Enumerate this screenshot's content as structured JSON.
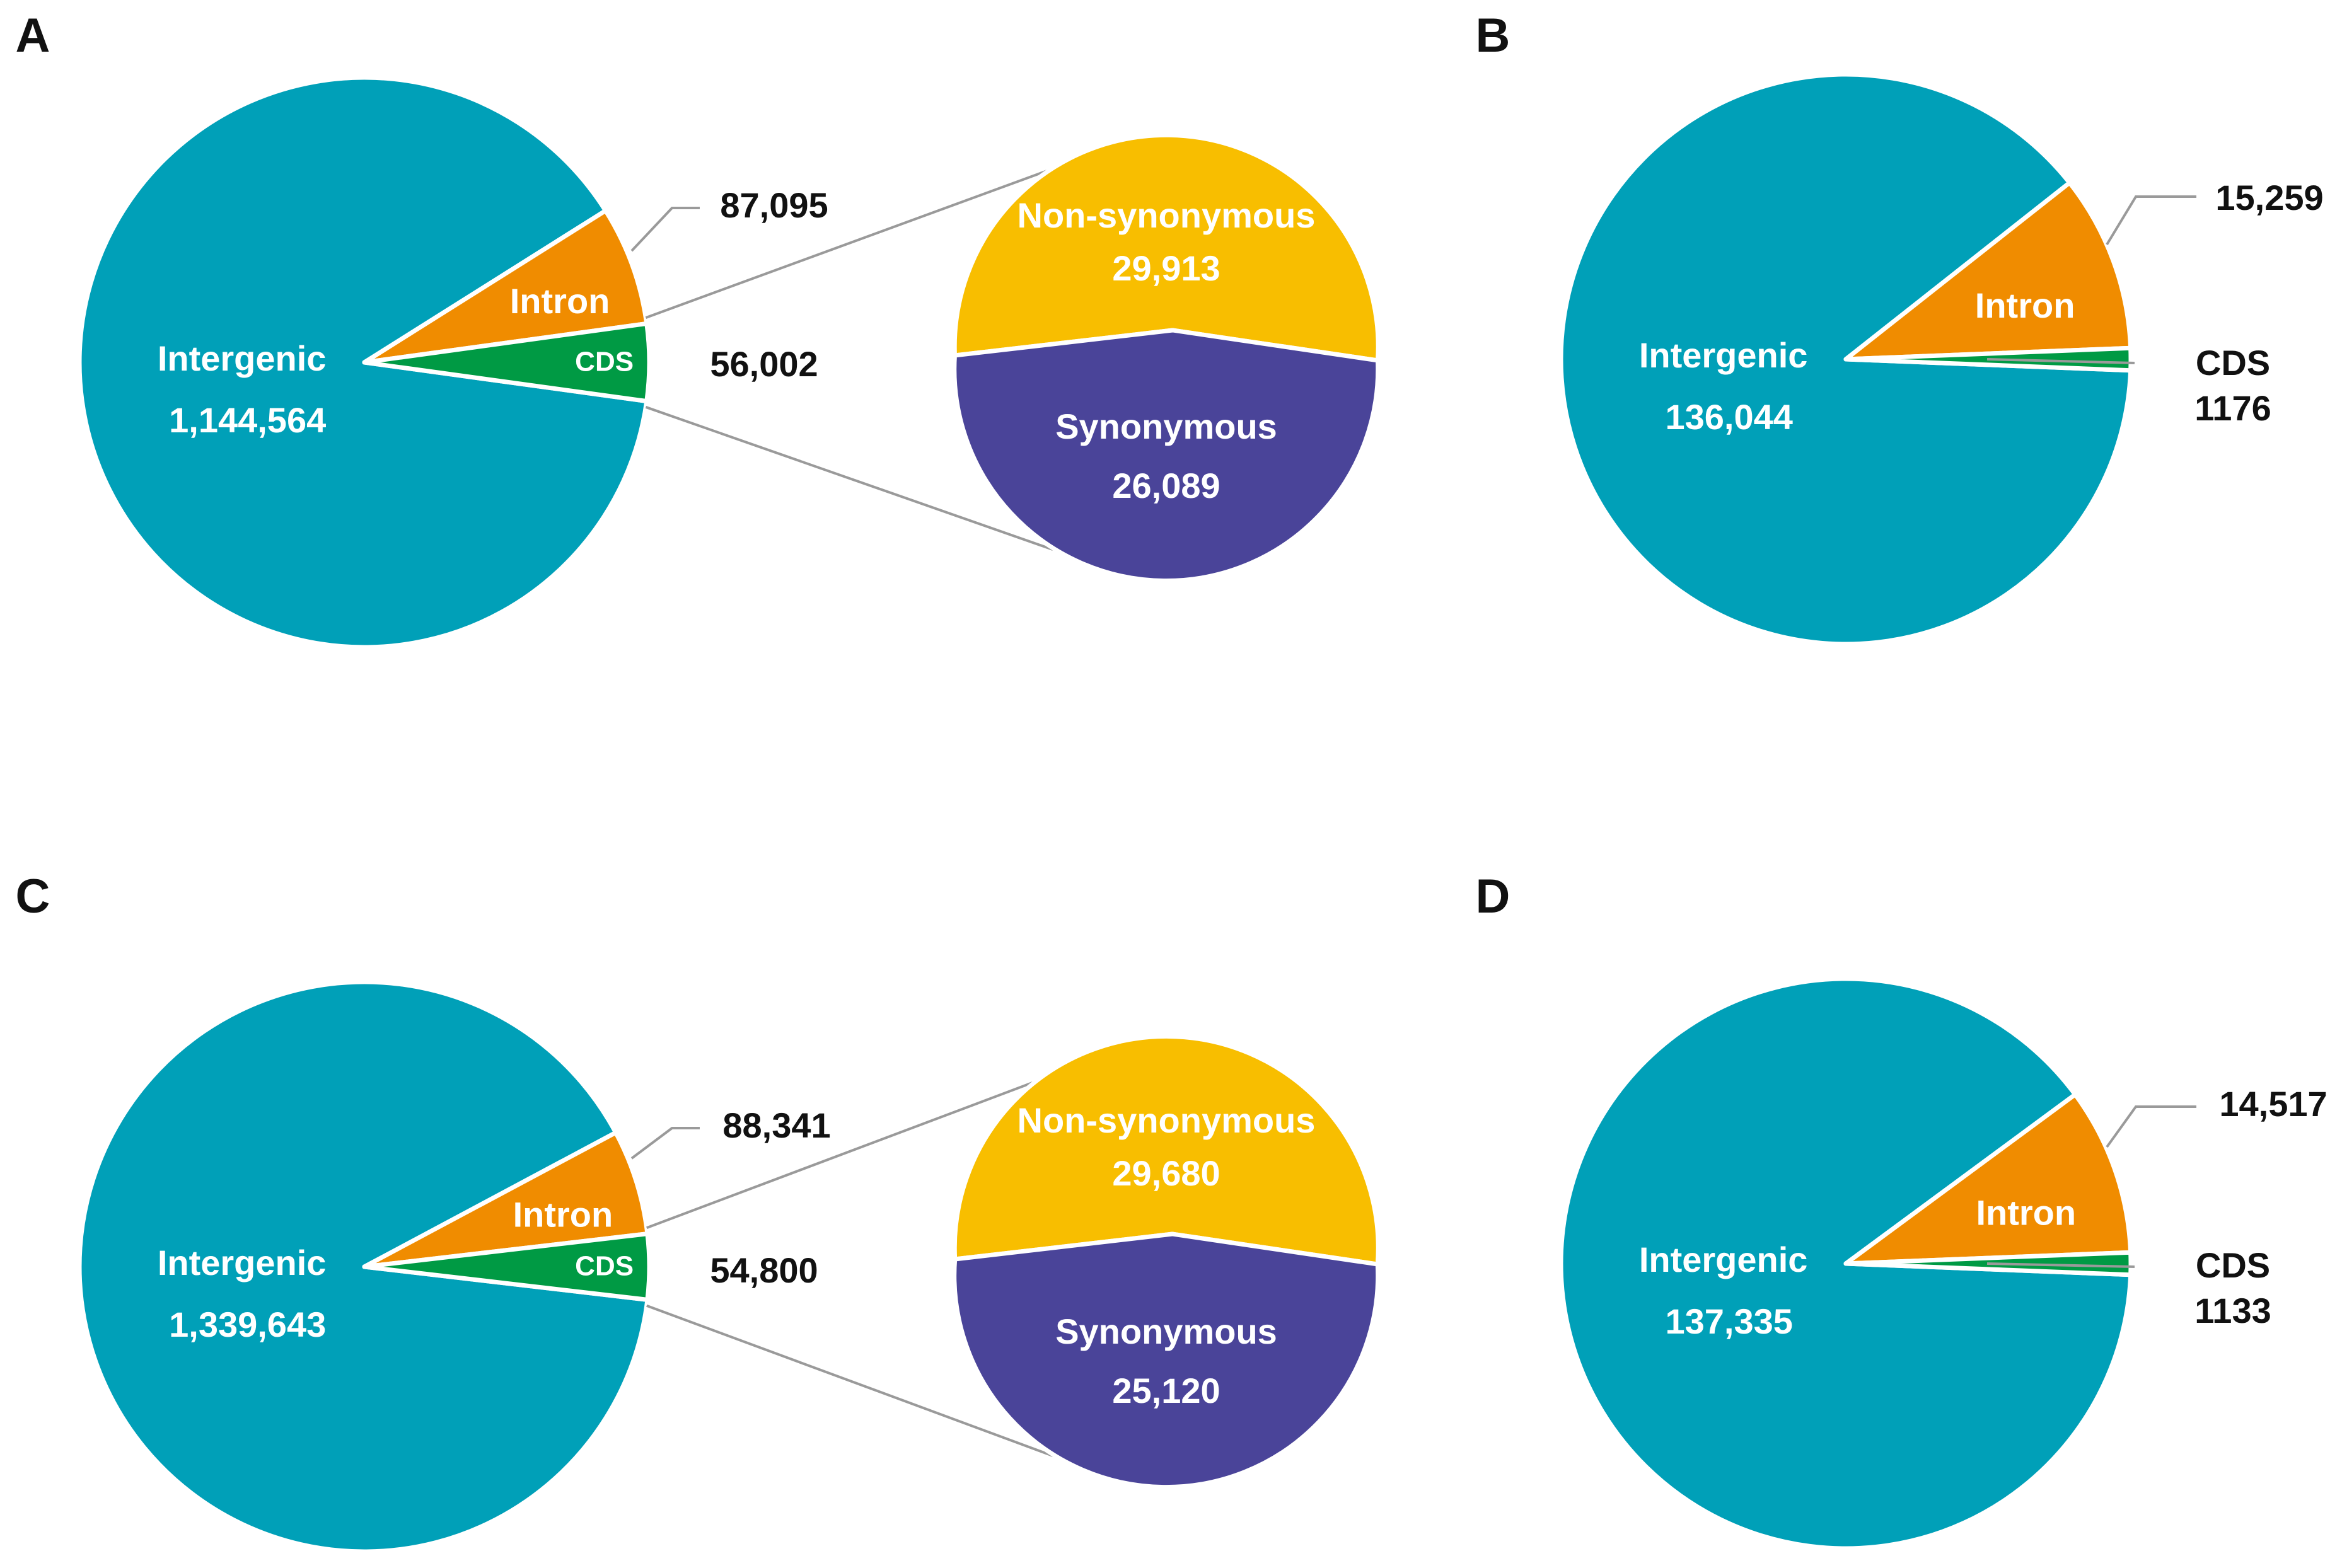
{
  "figure": {
    "colors": {
      "intergenic": "#00A0B8",
      "intron": "#F08C00",
      "cds": "#009A44",
      "nonsynonymous": "#F8BE00",
      "synonymous": "#4A4499",
      "leader": "#9A9A9A",
      "text_dark": "#111111",
      "text_light": "#FFFFFF"
    }
  },
  "chart_data": [
    {
      "panel": "A",
      "type": "pie",
      "slices": [
        {
          "key": "intergenic",
          "label": "Intergenic",
          "value": 1144564,
          "value_label": "1,144,564"
        },
        {
          "key": "intron",
          "label": "Intron",
          "value": 87095,
          "value_label": "87,095"
        },
        {
          "key": "cds",
          "label": "CDS",
          "value": 56002,
          "value_label": "56,002"
        }
      ],
      "breakdown": {
        "of": "CDS",
        "slices": [
          {
            "key": "nonsynonymous",
            "label": "Non-synonymous",
            "value": 29913,
            "value_label": "29,913"
          },
          {
            "key": "synonymous",
            "label": "Synonymous",
            "value": 26089,
            "value_label": "26,089"
          }
        ]
      }
    },
    {
      "panel": "B",
      "type": "pie",
      "slices": [
        {
          "key": "intergenic",
          "label": "Intergenic",
          "value": 136044,
          "value_label": "136,044"
        },
        {
          "key": "intron",
          "label": "Intron",
          "value": 15259,
          "value_label": "15,259"
        },
        {
          "key": "cds",
          "label": "CDS",
          "value": 1176,
          "value_label": "1176"
        }
      ]
    },
    {
      "panel": "C",
      "type": "pie",
      "slices": [
        {
          "key": "intergenic",
          "label": "Intergenic",
          "value": 1339643,
          "value_label": "1,339,643"
        },
        {
          "key": "intron",
          "label": "Intron",
          "value": 88341,
          "value_label": "88,341"
        },
        {
          "key": "cds",
          "label": "CDS",
          "value": 54800,
          "value_label": "54,800"
        }
      ],
      "breakdown": {
        "of": "CDS",
        "slices": [
          {
            "key": "nonsynonymous",
            "label": "Non-synonymous",
            "value": 29680,
            "value_label": "29,680"
          },
          {
            "key": "synonymous",
            "label": "Synonymous",
            "value": 25120,
            "value_label": "25,120"
          }
        ]
      }
    },
    {
      "panel": "D",
      "type": "pie",
      "slices": [
        {
          "key": "intergenic",
          "label": "Intergenic",
          "value": 137335,
          "value_label": "137,335"
        },
        {
          "key": "intron",
          "label": "Intron",
          "value": 14517,
          "value_label": "14,517"
        },
        {
          "key": "cds",
          "label": "CDS",
          "value": 1133,
          "value_label": "1133"
        }
      ]
    }
  ]
}
